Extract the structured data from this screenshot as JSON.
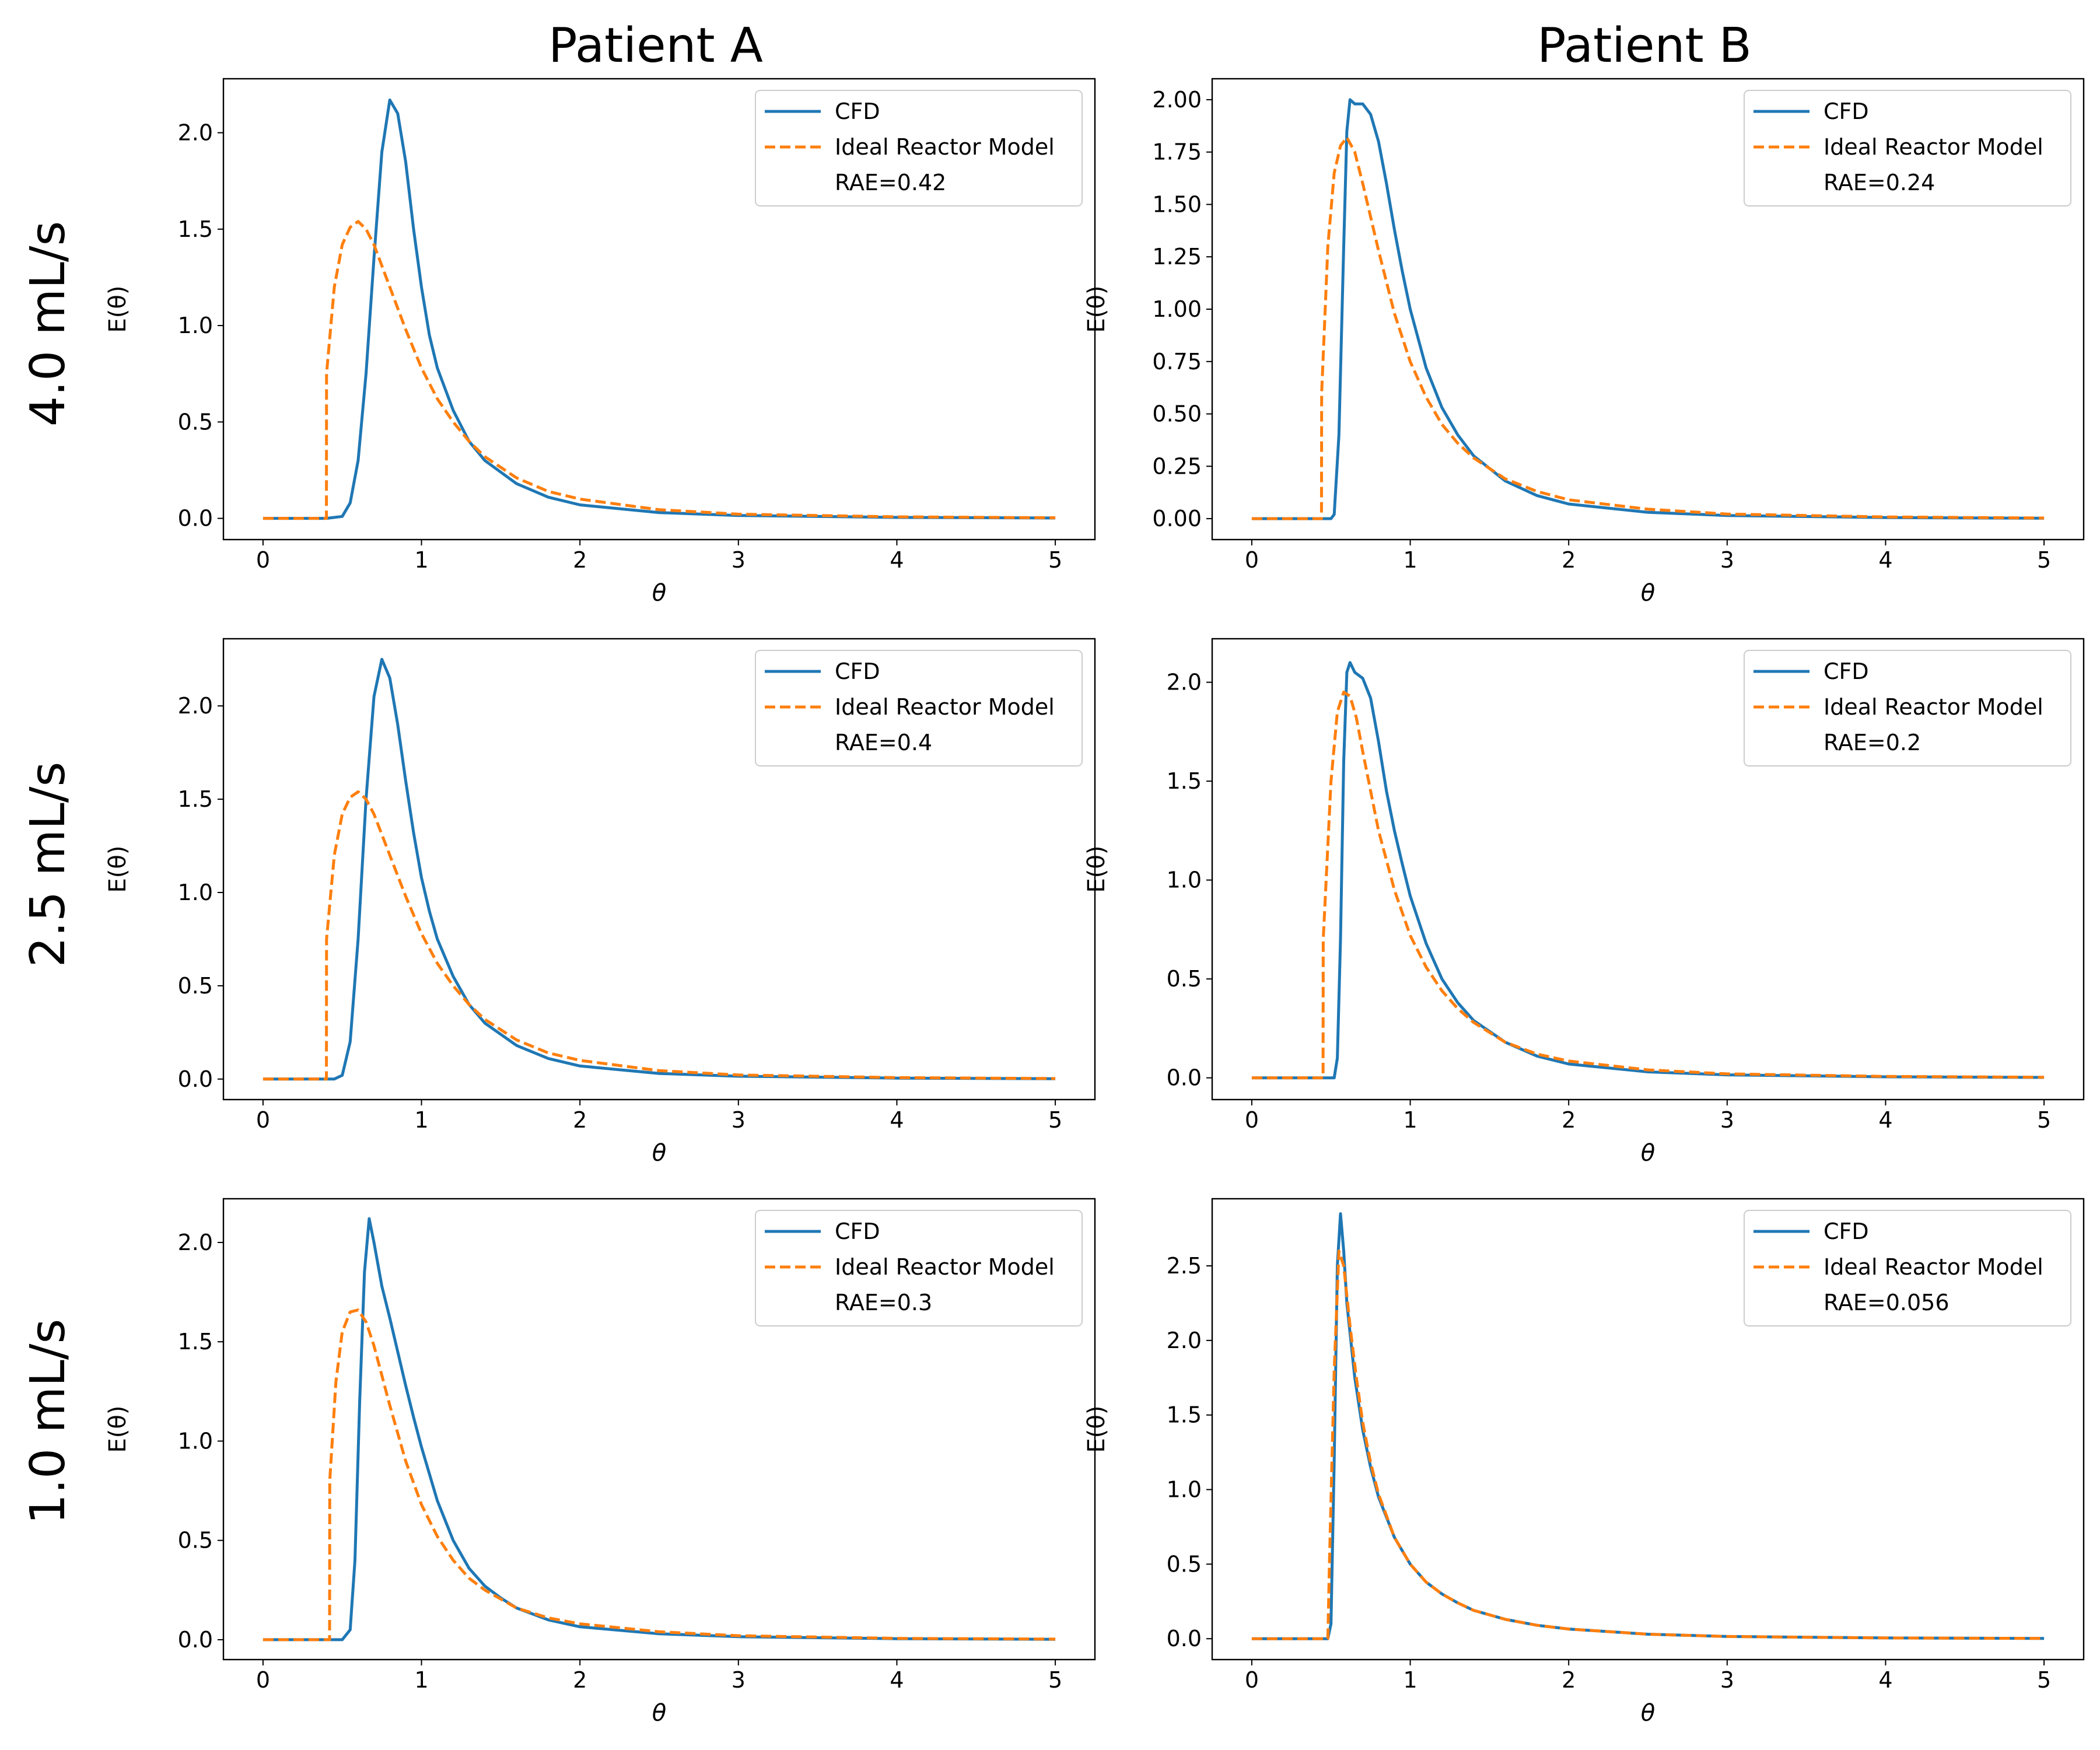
{
  "figure": {
    "column_titles": [
      "Patient A",
      "Patient B"
    ],
    "row_labels": [
      "4.0 mL/s",
      "2.5 mL/s",
      "1.0 mL/s"
    ]
  },
  "colors": {
    "cfd": "#1f77b4",
    "ideal": "#ff7f0e"
  },
  "chart_data": [
    {
      "type": "line",
      "panel": "Patient A / 4.0 mL/s",
      "xlabel": "θ",
      "ylabel": "E(θ)",
      "xlim": [
        -0.25,
        5.25
      ],
      "ylim": [
        -0.11,
        2.28
      ],
      "xticks": [
        "0",
        "1",
        "2",
        "3",
        "4",
        "5"
      ],
      "yticks": [
        "0.0",
        "0.5",
        "1.0",
        "1.5",
        "2.0"
      ],
      "legend": {
        "placement": "upper right",
        "entries": [
          "CFD",
          "Ideal Reactor Model"
        ],
        "note": "RAE=0.42"
      },
      "series": [
        {
          "name": "CFD",
          "style": "solid",
          "x": [
            0,
            0.4,
            0.5,
            0.55,
            0.6,
            0.65,
            0.7,
            0.75,
            0.8,
            0.85,
            0.9,
            0.95,
            1.0,
            1.05,
            1.1,
            1.2,
            1.3,
            1.4,
            1.6,
            1.8,
            2.0,
            2.5,
            3.0,
            4.0,
            5.0
          ],
          "y": [
            0,
            0,
            0.01,
            0.08,
            0.3,
            0.75,
            1.35,
            1.9,
            2.17,
            2.1,
            1.85,
            1.5,
            1.2,
            0.95,
            0.78,
            0.56,
            0.4,
            0.3,
            0.18,
            0.11,
            0.07,
            0.03,
            0.015,
            0.005,
            0.002
          ]
        },
        {
          "name": "Ideal Reactor Model",
          "style": "dashed",
          "x": [
            0,
            0.4,
            0.401,
            0.45,
            0.5,
            0.55,
            0.6,
            0.65,
            0.7,
            0.8,
            0.9,
            1.0,
            1.1,
            1.2,
            1.3,
            1.4,
            1.6,
            1.8,
            2.0,
            2.5,
            3.0,
            4.0,
            5.0
          ],
          "y": [
            0,
            0,
            0.75,
            1.2,
            1.42,
            1.51,
            1.54,
            1.5,
            1.42,
            1.2,
            0.98,
            0.78,
            0.62,
            0.5,
            0.4,
            0.32,
            0.21,
            0.14,
            0.1,
            0.045,
            0.022,
            0.008,
            0.003
          ]
        }
      ]
    },
    {
      "type": "line",
      "panel": "Patient B / 4.0 mL/s",
      "xlabel": "θ",
      "ylabel": "E(θ)",
      "xlim": [
        -0.25,
        5.25
      ],
      "ylim": [
        -0.1,
        2.1
      ],
      "xticks": [
        "0",
        "1",
        "2",
        "3",
        "4",
        "5"
      ],
      "yticks": [
        "0.00",
        "0.25",
        "0.50",
        "0.75",
        "1.00",
        "1.25",
        "1.50",
        "1.75",
        "2.00"
      ],
      "legend": {
        "placement": "upper right",
        "entries": [
          "CFD",
          "Ideal Reactor Model"
        ],
        "note": "RAE=0.24"
      },
      "series": [
        {
          "name": "CFD",
          "style": "solid",
          "x": [
            0,
            0.5,
            0.52,
            0.55,
            0.58,
            0.6,
            0.62,
            0.65,
            0.7,
            0.75,
            0.8,
            0.85,
            0.9,
            0.95,
            1.0,
            1.1,
            1.2,
            1.3,
            1.4,
            1.6,
            1.8,
            2.0,
            2.5,
            3.0,
            4.0,
            5.0
          ],
          "y": [
            0,
            0,
            0.02,
            0.4,
            1.3,
            1.85,
            2.0,
            1.98,
            1.98,
            1.93,
            1.8,
            1.6,
            1.38,
            1.18,
            1.0,
            0.72,
            0.53,
            0.4,
            0.3,
            0.18,
            0.11,
            0.07,
            0.03,
            0.015,
            0.005,
            0.002
          ]
        },
        {
          "name": "Ideal Reactor Model",
          "style": "dashed",
          "x": [
            0,
            0.44,
            0.441,
            0.48,
            0.52,
            0.56,
            0.6,
            0.65,
            0.7,
            0.8,
            0.9,
            1.0,
            1.1,
            1.2,
            1.3,
            1.4,
            1.6,
            1.8,
            2.0,
            2.5,
            3.0,
            4.0,
            5.0
          ],
          "y": [
            0,
            0,
            0.6,
            1.3,
            1.65,
            1.78,
            1.82,
            1.75,
            1.6,
            1.28,
            0.98,
            0.75,
            0.58,
            0.45,
            0.36,
            0.29,
            0.19,
            0.13,
            0.09,
            0.045,
            0.022,
            0.008,
            0.003
          ]
        }
      ]
    },
    {
      "type": "line",
      "panel": "Patient A / 2.5 mL/s",
      "xlabel": "θ",
      "ylabel": "E(θ)",
      "xlim": [
        -0.25,
        5.25
      ],
      "ylim": [
        -0.11,
        2.36
      ],
      "xticks": [
        "0",
        "1",
        "2",
        "3",
        "4",
        "5"
      ],
      "yticks": [
        "0.0",
        "0.5",
        "1.0",
        "1.5",
        "2.0"
      ],
      "legend": {
        "placement": "upper right",
        "entries": [
          "CFD",
          "Ideal Reactor Model"
        ],
        "note": "RAE=0.4"
      },
      "series": [
        {
          "name": "CFD",
          "style": "solid",
          "x": [
            0,
            0.45,
            0.5,
            0.55,
            0.6,
            0.65,
            0.7,
            0.75,
            0.8,
            0.85,
            0.9,
            0.95,
            1.0,
            1.05,
            1.1,
            1.2,
            1.3,
            1.4,
            1.6,
            1.8,
            2.0,
            2.5,
            3.0,
            4.0,
            5.0
          ],
          "y": [
            0,
            0,
            0.02,
            0.2,
            0.75,
            1.5,
            2.05,
            2.25,
            2.15,
            1.9,
            1.6,
            1.32,
            1.08,
            0.9,
            0.75,
            0.55,
            0.4,
            0.3,
            0.18,
            0.11,
            0.07,
            0.03,
            0.015,
            0.005,
            0.002
          ]
        },
        {
          "name": "Ideal Reactor Model",
          "style": "dashed",
          "x": [
            0,
            0.4,
            0.401,
            0.45,
            0.5,
            0.55,
            0.6,
            0.65,
            0.7,
            0.8,
            0.9,
            1.0,
            1.1,
            1.2,
            1.3,
            1.4,
            1.6,
            1.8,
            2.0,
            2.5,
            3.0,
            4.0,
            5.0
          ],
          "y": [
            0,
            0,
            0.75,
            1.2,
            1.42,
            1.51,
            1.54,
            1.5,
            1.42,
            1.2,
            0.98,
            0.78,
            0.62,
            0.5,
            0.4,
            0.32,
            0.21,
            0.14,
            0.1,
            0.045,
            0.022,
            0.008,
            0.003
          ]
        }
      ]
    },
    {
      "type": "line",
      "panel": "Patient B / 2.5 mL/s",
      "xlabel": "θ",
      "ylabel": "E(θ)",
      "xlim": [
        -0.25,
        5.25
      ],
      "ylim": [
        -0.11,
        2.22
      ],
      "xticks": [
        "0",
        "1",
        "2",
        "3",
        "4",
        "5"
      ],
      "yticks": [
        "0.0",
        "0.5",
        "1.0",
        "1.5",
        "2.0"
      ],
      "legend": {
        "placement": "upper right",
        "entries": [
          "CFD",
          "Ideal Reactor Model"
        ],
        "note": "RAE=0.2"
      },
      "series": [
        {
          "name": "CFD",
          "style": "solid",
          "x": [
            0,
            0.52,
            0.54,
            0.56,
            0.58,
            0.6,
            0.62,
            0.65,
            0.7,
            0.75,
            0.8,
            0.85,
            0.9,
            0.95,
            1.0,
            1.1,
            1.2,
            1.3,
            1.4,
            1.6,
            1.8,
            2.0,
            2.5,
            3.0,
            4.0,
            5.0
          ],
          "y": [
            0,
            0,
            0.1,
            0.7,
            1.6,
            2.05,
            2.1,
            2.05,
            2.02,
            1.92,
            1.7,
            1.45,
            1.25,
            1.08,
            0.92,
            0.68,
            0.5,
            0.38,
            0.29,
            0.18,
            0.11,
            0.07,
            0.03,
            0.015,
            0.005,
            0.002
          ]
        },
        {
          "name": "Ideal Reactor Model",
          "style": "dashed",
          "x": [
            0,
            0.45,
            0.451,
            0.5,
            0.54,
            0.58,
            0.62,
            0.66,
            0.7,
            0.8,
            0.9,
            1.0,
            1.1,
            1.2,
            1.3,
            1.4,
            1.6,
            1.8,
            2.0,
            2.5,
            3.0,
            4.0,
            5.0
          ],
          "y": [
            0,
            0,
            0.7,
            1.5,
            1.85,
            1.95,
            1.93,
            1.82,
            1.65,
            1.25,
            0.95,
            0.72,
            0.56,
            0.44,
            0.35,
            0.28,
            0.18,
            0.12,
            0.085,
            0.04,
            0.02,
            0.007,
            0.003
          ]
        }
      ]
    },
    {
      "type": "line",
      "panel": "Patient A / 1.0 mL/s",
      "xlabel": "θ",
      "ylabel": "E(θ)",
      "xlim": [
        -0.25,
        5.25
      ],
      "ylim": [
        -0.1,
        2.22
      ],
      "xticks": [
        "0",
        "1",
        "2",
        "3",
        "4",
        "5"
      ],
      "yticks": [
        "0.0",
        "0.5",
        "1.0",
        "1.5",
        "2.0"
      ],
      "legend": {
        "placement": "upper right",
        "entries": [
          "CFD",
          "Ideal Reactor Model"
        ],
        "note": "RAE=0.3"
      },
      "series": [
        {
          "name": "CFD",
          "style": "solid",
          "x": [
            0,
            0.5,
            0.55,
            0.58,
            0.61,
            0.64,
            0.67,
            0.7,
            0.75,
            0.8,
            0.85,
            0.9,
            0.95,
            1.0,
            1.1,
            1.2,
            1.3,
            1.4,
            1.5,
            1.6,
            1.8,
            2.0,
            2.5,
            3.0,
            4.0,
            5.0
          ],
          "y": [
            0,
            0,
            0.05,
            0.4,
            1.2,
            1.85,
            2.12,
            2.0,
            1.78,
            1.62,
            1.45,
            1.28,
            1.12,
            0.97,
            0.7,
            0.5,
            0.36,
            0.27,
            0.21,
            0.16,
            0.1,
            0.065,
            0.03,
            0.015,
            0.005,
            0.002
          ]
        },
        {
          "name": "Ideal Reactor Model",
          "style": "dashed",
          "x": [
            0,
            0.42,
            0.421,
            0.46,
            0.5,
            0.55,
            0.6,
            0.65,
            0.7,
            0.8,
            0.9,
            1.0,
            1.1,
            1.2,
            1.3,
            1.4,
            1.6,
            1.8,
            2.0,
            2.5,
            3.0,
            4.0,
            5.0
          ],
          "y": [
            0,
            0,
            0.8,
            1.3,
            1.55,
            1.65,
            1.66,
            1.6,
            1.48,
            1.18,
            0.9,
            0.68,
            0.52,
            0.4,
            0.31,
            0.25,
            0.16,
            0.11,
            0.08,
            0.04,
            0.02,
            0.007,
            0.003
          ]
        }
      ]
    },
    {
      "type": "line",
      "panel": "Patient B / 1.0 mL/s",
      "xlabel": "θ",
      "ylabel": "E(θ)",
      "xlim": [
        -0.25,
        5.25
      ],
      "ylim": [
        -0.14,
        2.95
      ],
      "xticks": [
        "0",
        "1",
        "2",
        "3",
        "4",
        "5"
      ],
      "yticks": [
        "0.0",
        "0.5",
        "1.0",
        "1.5",
        "2.0",
        "2.5"
      ],
      "legend": {
        "placement": "upper right",
        "entries": [
          "CFD",
          "Ideal Reactor Model"
        ],
        "note": "RAE=0.056"
      },
      "series": [
        {
          "name": "CFD",
          "style": "solid",
          "x": [
            0,
            0.48,
            0.5,
            0.52,
            0.54,
            0.56,
            0.58,
            0.6,
            0.65,
            0.7,
            0.75,
            0.8,
            0.9,
            1.0,
            1.1,
            1.2,
            1.3,
            1.4,
            1.6,
            1.8,
            2.0,
            2.5,
            3.0,
            4.0,
            5.0
          ],
          "y": [
            0,
            0,
            0.1,
            1.2,
            2.5,
            2.85,
            2.6,
            2.25,
            1.75,
            1.4,
            1.15,
            0.95,
            0.68,
            0.5,
            0.38,
            0.3,
            0.24,
            0.19,
            0.13,
            0.09,
            0.065,
            0.03,
            0.015,
            0.005,
            0.002
          ]
        },
        {
          "name": "Ideal Reactor Model",
          "style": "dashed",
          "x": [
            0,
            0.48,
            0.49,
            0.52,
            0.55,
            0.58,
            0.62,
            0.66,
            0.7,
            0.75,
            0.8,
            0.9,
            1.0,
            1.1,
            1.2,
            1.3,
            1.4,
            1.6,
            1.8,
            2.0,
            2.5,
            3.0,
            4.0,
            5.0
          ],
          "y": [
            0,
            0,
            0.5,
            1.8,
            2.6,
            2.5,
            2.1,
            1.75,
            1.45,
            1.18,
            0.97,
            0.68,
            0.5,
            0.38,
            0.3,
            0.24,
            0.19,
            0.13,
            0.09,
            0.065,
            0.03,
            0.015,
            0.005,
            0.002
          ]
        }
      ]
    }
  ]
}
